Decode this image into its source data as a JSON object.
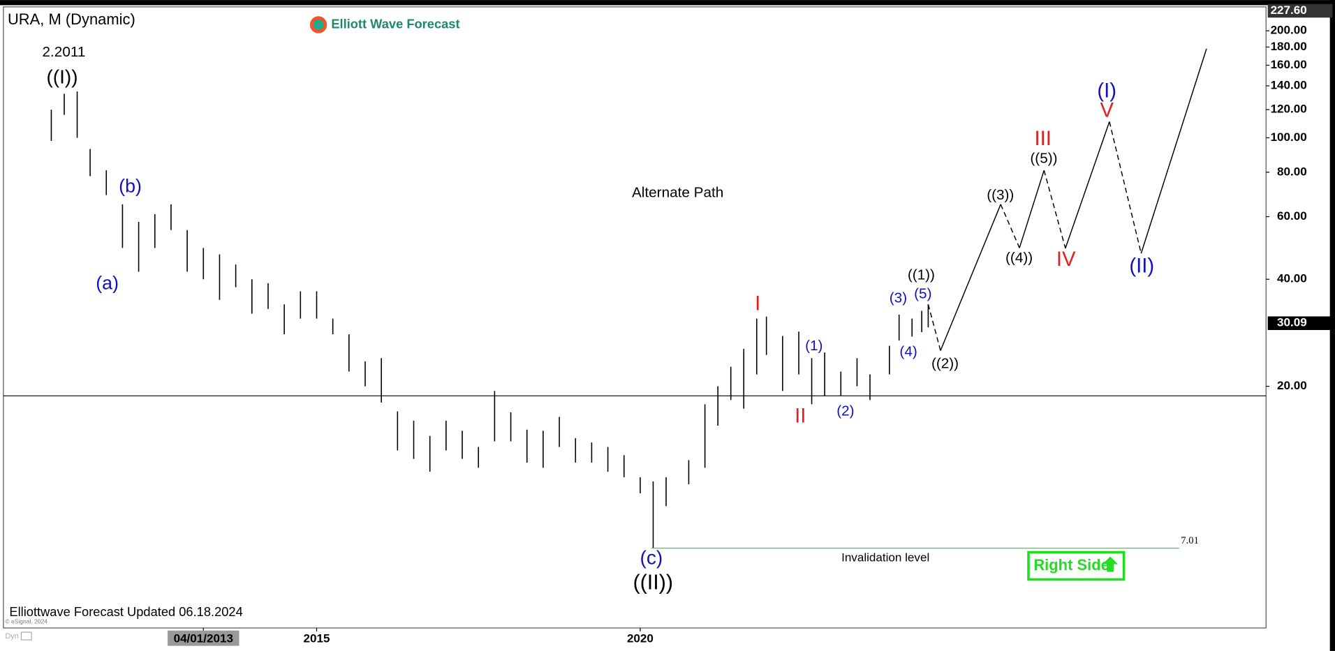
{
  "chart_data": {
    "type": "ohlc",
    "title": "URA, M (Dynamic)",
    "logo": "Elliott Wave Forecast",
    "footer": "Elliottwave Forecast Updated 06.18.2024",
    "copyright": "© eSignal, 2024",
    "mode": "Dyn",
    "log_scale": true,
    "xlim": [
      2010.16,
      2029.67
    ],
    "ylim": [
      4.18,
      233.5
    ],
    "xticks": [
      {
        "value": 2013.25,
        "label": "04/01/2013"
      },
      2015,
      2020
    ],
    "yticks": [
      {
        "value": 20,
        "label": "20.00"
      },
      {
        "value": 40,
        "label": "40.00"
      },
      {
        "value": 60,
        "label": "60.00"
      },
      {
        "value": 80,
        "label": "80.00"
      },
      {
        "value": 100,
        "label": "100.00"
      },
      {
        "value": 120,
        "label": "120.00"
      },
      {
        "value": 140,
        "label": "140.00"
      },
      {
        "value": 160,
        "label": "160.00"
      },
      {
        "value": 180,
        "label": "180.00"
      },
      {
        "value": 200,
        "label": "200.00"
      }
    ],
    "top_price": {
      "value": 227.6,
      "label": "227.60"
    },
    "last_price": {
      "value": 30.09,
      "label": "30.09"
    },
    "horizontal_line": 18.8,
    "color": "#000000",
    "ohlc": {
      "x": [
        2010.9,
        2011.1,
        2011.3,
        2011.5,
        2011.75,
        2012.0,
        2012.25,
        2012.5,
        2012.75,
        2013.0,
        2013.25,
        2013.5,
        2013.75,
        2014.0,
        2014.25,
        2014.5,
        2014.75,
        2015.0,
        2015.25,
        2015.5,
        2015.75,
        2016.0,
        2016.25,
        2016.5,
        2016.75,
        2017.0,
        2017.25,
        2017.5,
        2017.75,
        2018.0,
        2018.25,
        2018.5,
        2018.75,
        2019.0,
        2019.25,
        2019.5,
        2019.75,
        2020.0,
        2020.2,
        2020.4,
        2020.75,
        2021.0,
        2021.2,
        2021.4,
        2021.6,
        2021.8,
        2021.95,
        2022.2,
        2022.45,
        2022.65,
        2022.85,
        2023.1,
        2023.35,
        2023.55,
        2023.85,
        2024.0,
        2024.2,
        2024.35,
        2024.45
      ],
      "high": [
        120,
        133,
        135,
        93,
        81,
        65,
        58,
        61,
        65,
        55,
        49,
        47,
        44,
        40,
        39,
        34,
        37,
        37,
        31,
        28,
        23.5,
        24,
        17,
        16,
        14.5,
        16,
        15,
        13.5,
        19.4,
        16.9,
        15.1,
        15,
        16.4,
        14.3,
        13.9,
        13.5,
        12.8,
        11.1,
        10.8,
        11.1,
        12.4,
        17.8,
        20,
        22.7,
        25.5,
        31,
        31.4,
        27.7,
        28.5,
        24,
        24.9,
        22,
        24,
        21.6,
        26,
        31.8,
        31,
        32.6,
        34
      ],
      "low": [
        98,
        116,
        100,
        78,
        69,
        49,
        42,
        49,
        55,
        42,
        40,
        35,
        38,
        32,
        33,
        28,
        31,
        31,
        28,
        22,
        20,
        18,
        13.2,
        12.5,
        11.5,
        13.2,
        12.5,
        11.8,
        14,
        14,
        12.2,
        11.8,
        13.5,
        12.2,
        12.2,
        11.5,
        11.1,
        10,
        7.01,
        9.2,
        10.6,
        11.8,
        15.5,
        18.3,
        17.3,
        21.6,
        24.5,
        19.4,
        21.6,
        17.8,
        18.8,
        18.8,
        20,
        18.3,
        21.6,
        26.9,
        27.6,
        28.4,
        29.3
      ]
    },
    "projection": {
      "x": [
        2024.45,
        2024.64,
        2025.57,
        2025.86,
        2026.24,
        2026.57,
        2027.25,
        2027.74,
        2028.75
      ],
      "values": [
        34,
        25.2,
        65,
        49,
        81,
        48.9,
        111,
        47.3,
        178
      ]
    },
    "invalidation": {
      "value": 7.01,
      "label": "7.01",
      "text": "Invalidation level",
      "color": "#33dd33"
    },
    "wave_labels": [
      {
        "text": "2.2011",
        "color": "#000000"
      },
      {
        "text": "((I))",
        "color": "#000000"
      },
      {
        "text": "(b)",
        "color": "#1010c0"
      },
      {
        "text": "(a)",
        "color": "#1010c0"
      },
      {
        "text": "Alternate Path",
        "color": "#000000"
      },
      {
        "text": "I",
        "color": "#e02020"
      },
      {
        "text": "II",
        "color": "#e02020"
      },
      {
        "text": "(1)",
        "color": "#1010c0"
      },
      {
        "text": "(2)",
        "color": "#1010c0"
      },
      {
        "text": "(3)",
        "color": "#1010c0"
      },
      {
        "text": "(4)",
        "color": "#1010c0"
      },
      {
        "text": "(5)",
        "color": "#1010c0"
      },
      {
        "text": "((1))",
        "color": "#000000"
      },
      {
        "text": "((2))",
        "color": "#000000"
      },
      {
        "text": "((3))",
        "color": "#000000"
      },
      {
        "text": "((4))",
        "color": "#000000"
      },
      {
        "text": "((5))",
        "color": "#000000"
      },
      {
        "text": "III",
        "color": "#e02020"
      },
      {
        "text": "IV",
        "color": "#e02020"
      },
      {
        "text": "V",
        "color": "#e02020"
      },
      {
        "text": "(I)",
        "color": "#1010c0"
      },
      {
        "text": "(II)",
        "color": "#1010c0"
      },
      {
        "text": "(c)",
        "color": "#1010c0"
      },
      {
        "text": "((II))",
        "color": "#000000"
      }
    ],
    "badge": {
      "text": "Right Side",
      "color": "#22dd22"
    }
  }
}
